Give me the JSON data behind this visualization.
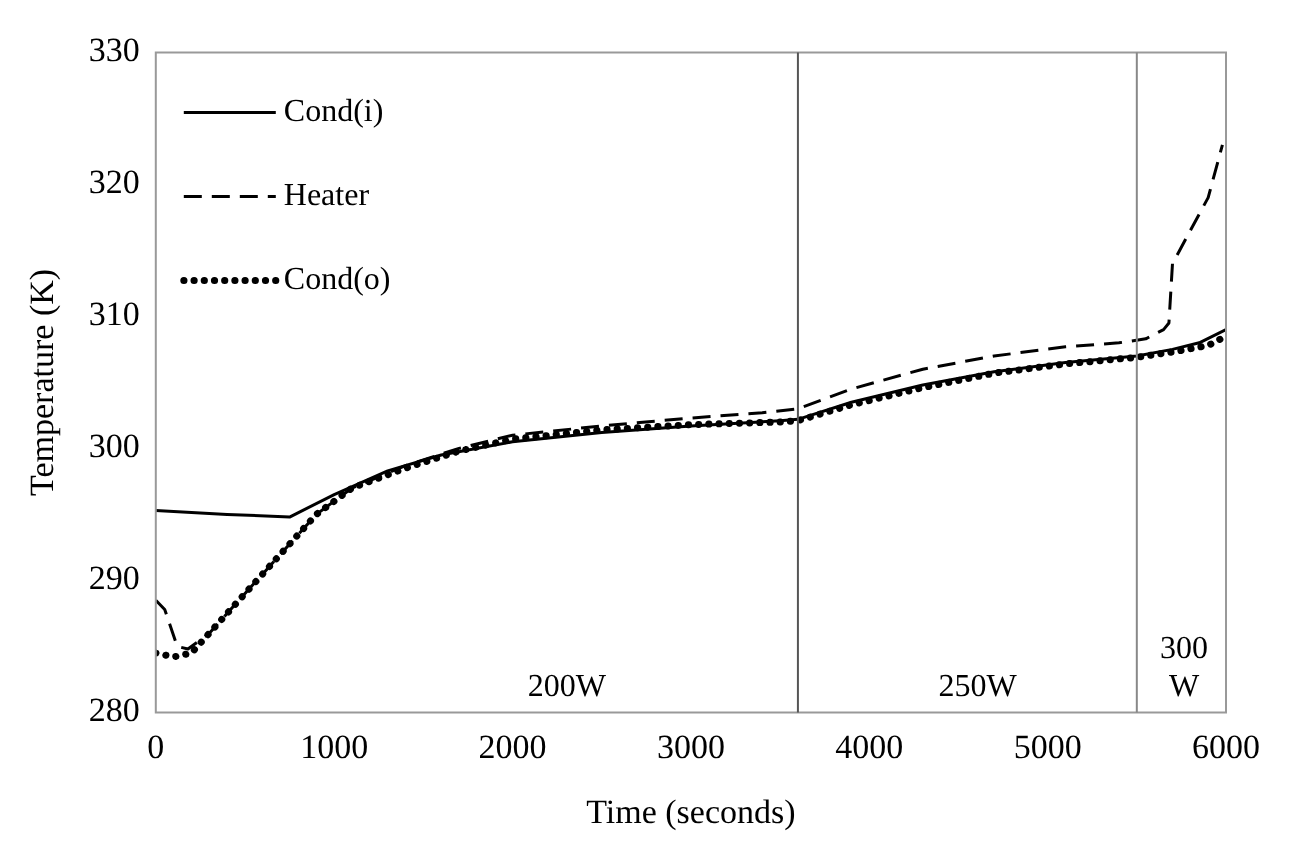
{
  "chart_data": {
    "type": "line",
    "xlabel": "Time (seconds)",
    "ylabel": "Temperature (K)",
    "xlim": [
      0,
      6000
    ],
    "xticks": [
      0,
      1000,
      2000,
      3000,
      4000,
      5000,
      6000
    ],
    "ylim": [
      280,
      330
    ],
    "yticks": [
      280,
      290,
      300,
      310,
      320,
      330
    ],
    "grid": false,
    "legend": "top left",
    "marker": "none",
    "series": [
      {
        "name": "Cond(i)",
        "color": "#000000",
        "line_style": "solid",
        "x": [
          0,
          400,
          750,
          1000,
          1300,
          1600,
          2000,
          2500,
          3000,
          3500,
          3600,
          3900,
          4300,
          4700,
          5100,
          5500,
          5700,
          5850,
          6000
        ],
        "values": [
          295.3,
          295,
          294.8,
          296.5,
          298.3,
          299.5,
          300.5,
          301.2,
          301.7,
          302.1,
          302.2,
          303.5,
          304.8,
          305.8,
          306.5,
          307,
          307.5,
          308,
          309
        ]
      },
      {
        "name": "Heater",
        "color": "#000000",
        "line_style": "dashed",
        "x": [
          0,
          50,
          120,
          180,
          300,
          500,
          700,
          900,
          1100,
          1400,
          1700,
          2000,
          2500,
          3000,
          3400,
          3600,
          3900,
          4300,
          4700,
          5100,
          5400,
          5550,
          5650,
          5680,
          5700,
          5780,
          5900,
          5980
        ],
        "values": [
          288.5,
          287.8,
          285,
          284.8,
          286,
          289,
          292,
          295,
          297,
          298.7,
          300,
          301,
          301.7,
          302.3,
          302.7,
          303,
          304.5,
          306,
          307,
          307.7,
          308,
          308.3,
          309,
          309.5,
          314,
          316,
          319,
          323
        ]
      },
      {
        "name": "Cond(o)",
        "color": "#000000",
        "line_style": "dotted",
        "x": [
          0,
          100,
          200,
          300,
          500,
          700,
          900,
          1100,
          1400,
          1700,
          2000,
          2500,
          3000,
          3500,
          3600,
          3900,
          4300,
          4700,
          5100,
          5500,
          5700,
          5900,
          6000
        ],
        "values": [
          284.5,
          284.2,
          284.5,
          286,
          289,
          292,
          295,
          297,
          298.5,
          299.8,
          300.7,
          301.4,
          301.8,
          302,
          302.1,
          303.3,
          304.6,
          305.7,
          306.4,
          306.9,
          307.3,
          307.8,
          308.5
        ]
      }
    ],
    "ref_lines": [
      {
        "axis": "x",
        "value": 3600,
        "color": "#555555"
      },
      {
        "axis": "x",
        "value": 5500,
        "color": "#888888"
      }
    ],
    "annotations": [
      "200W",
      "250W",
      "300 W"
    ]
  }
}
